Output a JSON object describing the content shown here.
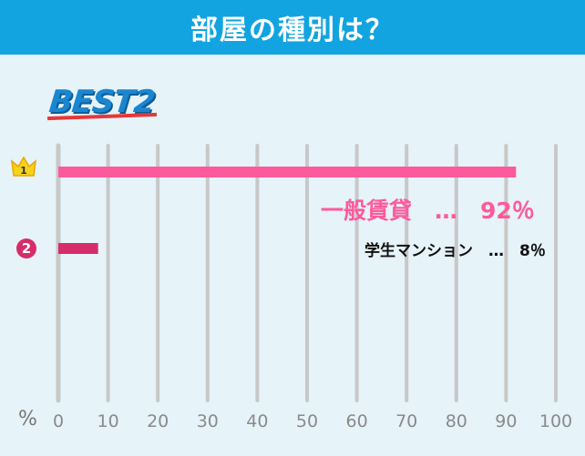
{
  "header": {
    "title": "部屋の種別は？"
  },
  "badge_title": "BEST2",
  "unit_symbol": "%",
  "colors": {
    "header_bg": "#12a4e0",
    "bar_rank1": "#fd5a9d",
    "bar_rank2": "#d62d6a",
    "background": "#e6f3f9",
    "gridline": "#c8c8c8"
  },
  "chart_data": {
    "type": "bar",
    "orientation": "horizontal",
    "categories": [
      "一般賃貸",
      "学生マンション"
    ],
    "values": [
      92,
      8
    ],
    "value_unit": "%",
    "ranks": [
      1,
      2
    ],
    "rank_icons": [
      "crown-icon",
      "number-circle-icon"
    ],
    "labels": [
      "一般賃貸　…　92％",
      "学生マンション　…　8％"
    ],
    "xlim": [
      0,
      100
    ],
    "xticks": [
      0,
      10,
      20,
      30,
      40,
      50,
      60,
      70,
      80,
      90,
      100
    ],
    "grid": true,
    "legend": "none"
  }
}
